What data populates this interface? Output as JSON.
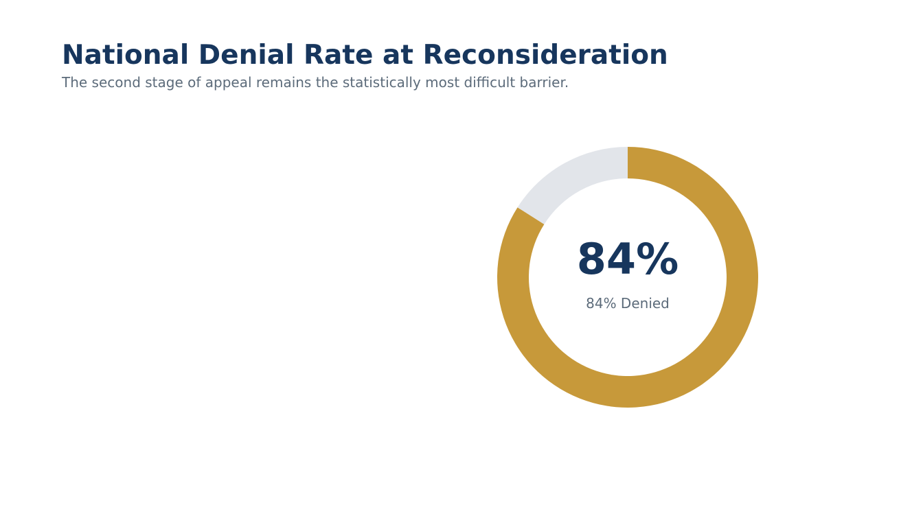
{
  "header": {
    "title": "National Denial Rate at Reconsideration",
    "subtitle": "The second stage of appeal remains the statistically most difficult barrier."
  },
  "colors": {
    "title": "#17365d",
    "subtitle": "#5c6b7a",
    "denied": "#c7993a",
    "remainder": "#e2e5ea",
    "center_value": "#17365d",
    "center_label": "#5c6b7a"
  },
  "chart_data": {
    "type": "pie",
    "title": "National Denial Rate at Reconsideration",
    "subtitle": "The second stage of appeal remains the statistically most difficult barrier.",
    "slices": [
      {
        "label": "Denied",
        "value": 84
      },
      {
        "label": "",
        "value": 16
      }
    ],
    "center_value": "84%",
    "center_label": "84% Denied",
    "donut": true,
    "legend": "none"
  }
}
